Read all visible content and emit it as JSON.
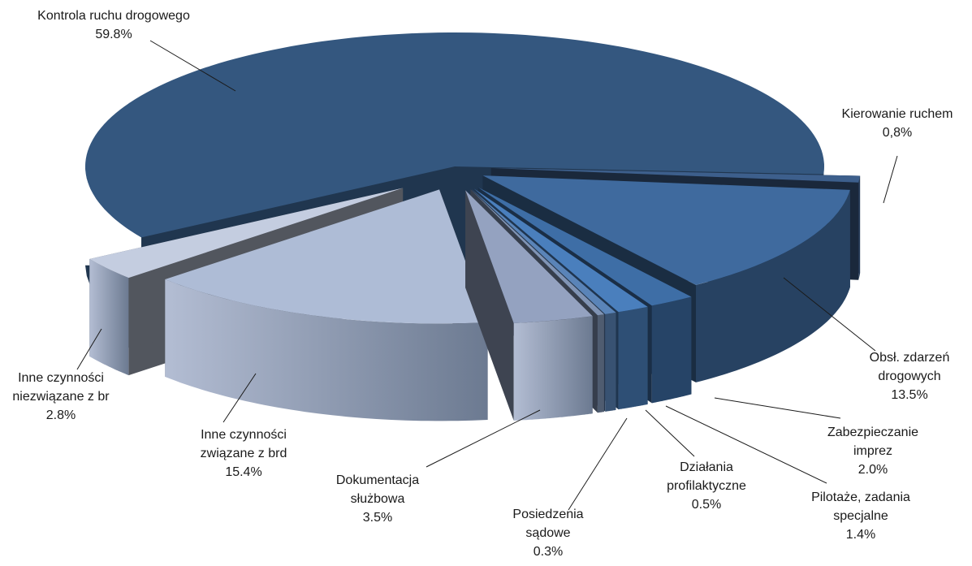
{
  "chart_data": {
    "type": "pie",
    "title": "",
    "slices": [
      {
        "label_lines": [
          "Kontrola ruchu drogowego"
        ],
        "value_text": "59.8%",
        "value": 59.8,
        "color": "#34577f"
      },
      {
        "label_lines": [
          "Kierowanie ruchem"
        ],
        "value_text": "0,8%",
        "value": 0.8,
        "color": "#3d5f8c"
      },
      {
        "label_lines": [
          "Obsł. zdarzeń",
          "drogowych"
        ],
        "value_text": "13.5%",
        "value": 13.5,
        "color": "#3f6a9e"
      },
      {
        "label_lines": [
          "Zabezpieczanie",
          "imprez"
        ],
        "value_text": "2.0%",
        "value": 2.0,
        "color": "#3e6ea6"
      },
      {
        "label_lines": [
          "Pilotaże, zadania",
          "specjalne"
        ],
        "value_text": "1.4%",
        "value": 1.4,
        "color": "#4a7fbd"
      },
      {
        "label_lines": [
          "Działania",
          "profilaktyczne"
        ],
        "value_text": "0.5%",
        "value": 0.5,
        "color": "#5a84b8"
      },
      {
        "label_lines": [
          "Posiedzenia",
          "sądowe"
        ],
        "value_text": "0.3%",
        "value": 0.3,
        "color": "#8094b5"
      },
      {
        "label_lines": [
          "Dokumentacja",
          "służbowa"
        ],
        "value_text": "3.5%",
        "value": 3.5,
        "color": "#94a2c0"
      },
      {
        "label_lines": [
          "Inne czynności",
          "związane z brd"
        ],
        "value_text": "15.4%",
        "value": 15.4,
        "color": "#aebcd6"
      },
      {
        "label_lines": [
          "Inne czynności",
          "niezwiązane z br"
        ],
        "value_text": "2.8%",
        "value": 2.8,
        "color": "#c4cde0"
      }
    ]
  }
}
